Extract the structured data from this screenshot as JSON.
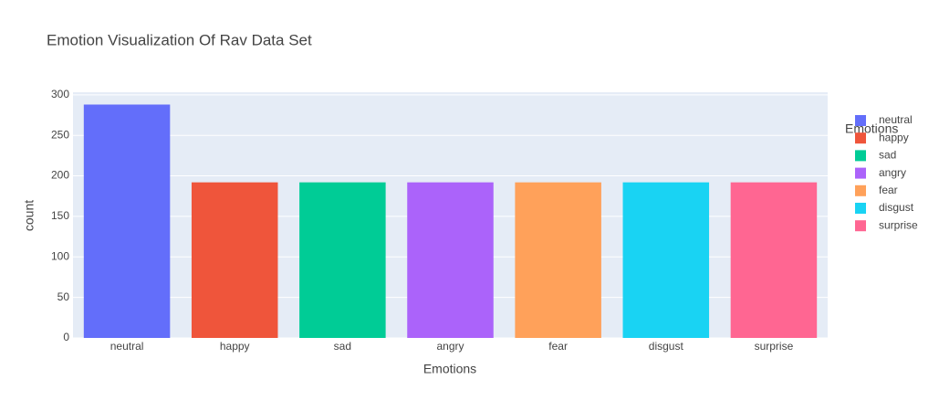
{
  "chart_data": {
    "type": "bar",
    "title": "Emotion Visualization Of Rav Data Set",
    "x_label": "Emotions",
    "y_label": "count",
    "legend_title": "Emotions",
    "categories": [
      "neutral",
      "happy",
      "sad",
      "angry",
      "fear",
      "disgust",
      "surprise"
    ],
    "series": [
      {
        "name": "neutral",
        "color": "#636efa",
        "values": [
          288,
          null,
          null,
          null,
          null,
          null,
          null
        ]
      },
      {
        "name": "happy",
        "color": "#ef553b",
        "values": [
          null,
          192,
          null,
          null,
          null,
          null,
          null
        ]
      },
      {
        "name": "sad",
        "color": "#00cc96",
        "values": [
          null,
          null,
          192,
          null,
          null,
          null,
          null
        ]
      },
      {
        "name": "angry",
        "color": "#ab63fa",
        "values": [
          null,
          null,
          null,
          192,
          null,
          null,
          null
        ]
      },
      {
        "name": "fear",
        "color": "#ffa15a",
        "values": [
          null,
          null,
          null,
          null,
          192,
          null,
          null
        ]
      },
      {
        "name": "disgust",
        "color": "#19d3f3",
        "values": [
          null,
          null,
          null,
          null,
          null,
          192,
          null
        ]
      },
      {
        "name": "surprise",
        "color": "#ff6692",
        "values": [
          null,
          null,
          null,
          null,
          null,
          null,
          192
        ]
      }
    ],
    "ylim": [
      0,
      303.2
    ],
    "yticks": [
      0,
      50,
      100,
      150,
      200,
      250,
      300
    ],
    "grid": true,
    "legend": "right"
  }
}
